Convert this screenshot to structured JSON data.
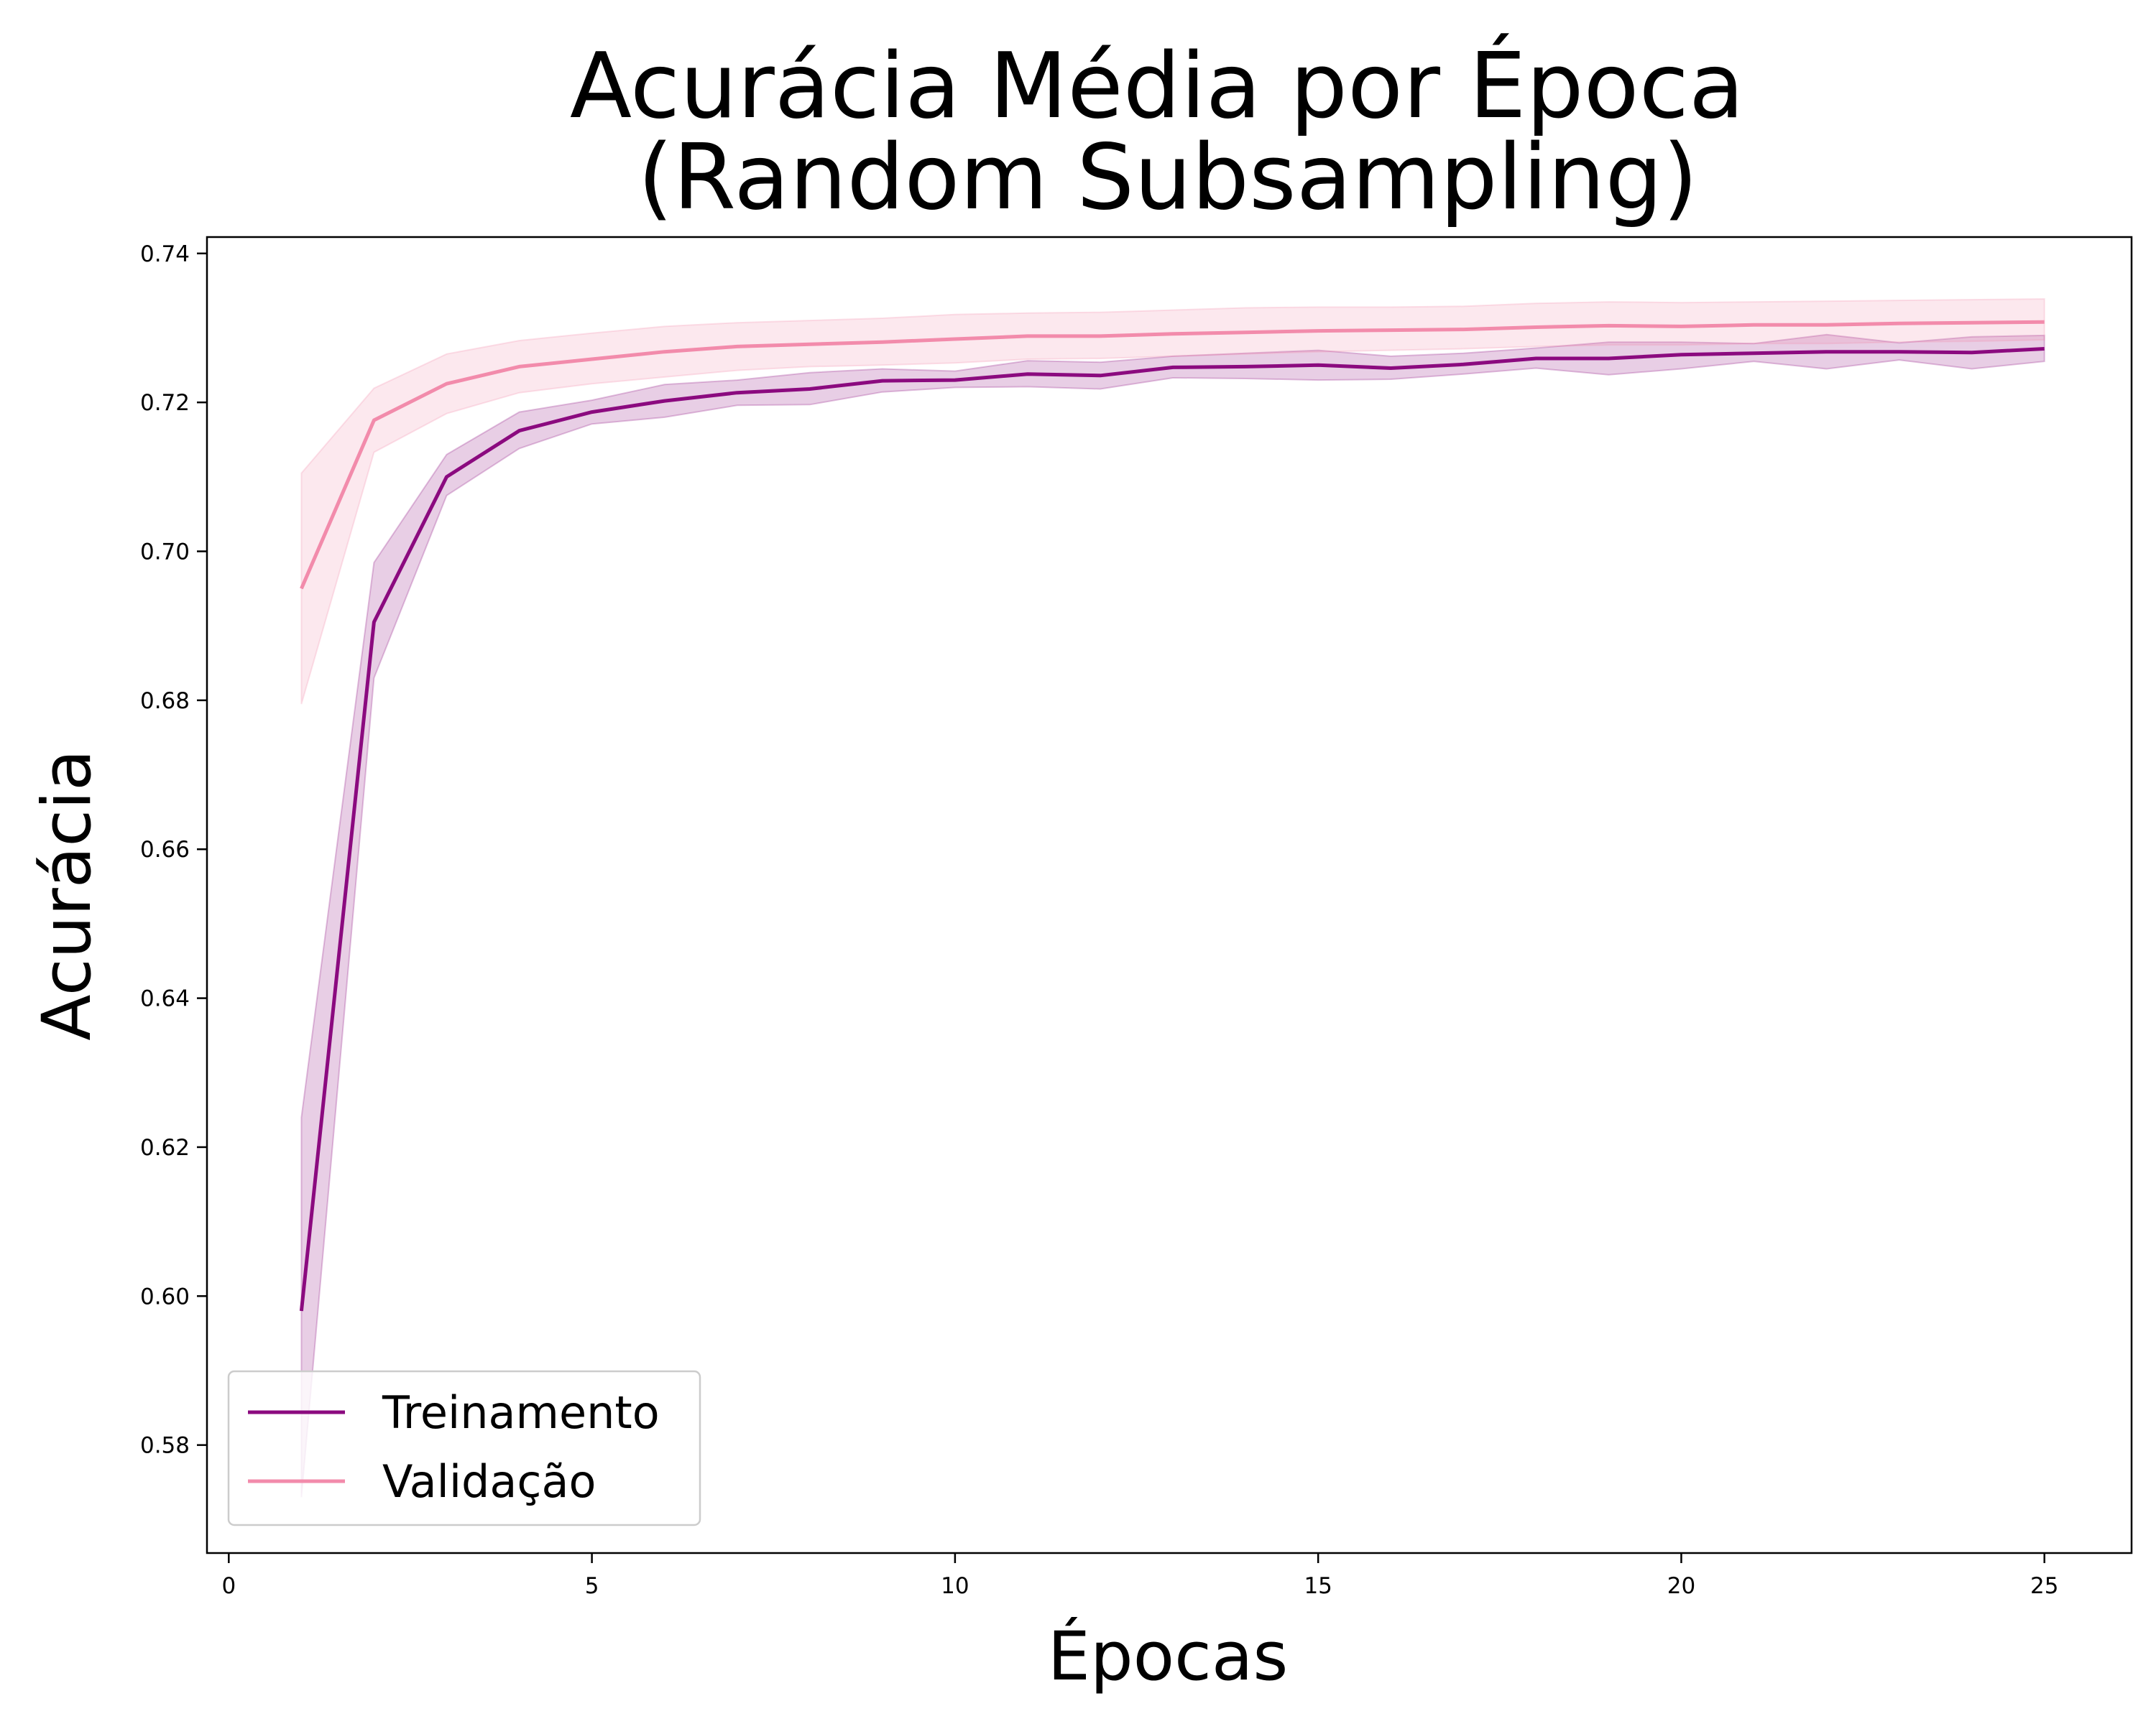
{
  "chart_data": {
    "type": "line",
    "title_line1": "Acurácia Média por Época",
    "title_line2": "(Random Subsampling)",
    "xlabel": "Épocas",
    "ylabel": "Acurácia",
    "xlim": [
      -0.3,
      26.2
    ],
    "ylim": [
      0.5655,
      0.7422
    ],
    "xticks": [
      0,
      5,
      10,
      15,
      20,
      25
    ],
    "xtick_labels": [
      "0",
      "5",
      "10",
      "15",
      "20",
      "25"
    ],
    "yticks": [
      0.58,
      0.6,
      0.62,
      0.64,
      0.66,
      0.68,
      0.7,
      0.72,
      0.74
    ],
    "ytick_labels": [
      "0.58",
      "0.60",
      "0.62",
      "0.64",
      "0.66",
      "0.68",
      "0.70",
      "0.72",
      "0.74"
    ],
    "grid": false,
    "legend_position": "lower-left",
    "x": [
      1,
      2,
      3,
      4,
      5,
      6,
      7,
      8,
      9,
      10,
      11,
      12,
      13,
      14,
      15,
      16,
      17,
      18,
      19,
      20,
      21,
      22,
      23,
      24,
      25
    ],
    "series": [
      {
        "name": "Treinamento",
        "color": "#8b0a7f",
        "values": [
          0.598,
          0.6905,
          0.71,
          0.7162,
          0.7187,
          0.7202,
          0.7213,
          0.7218,
          0.7229,
          0.723,
          0.7238,
          0.7236,
          0.7247,
          0.7248,
          0.725,
          0.7246,
          0.7251,
          0.7259,
          0.7259,
          0.7264,
          0.7266,
          0.7268,
          0.7268,
          0.7267,
          0.7272
        ],
        "lower": [
          0.573,
          0.683,
          0.7075,
          0.7138,
          0.7171,
          0.718,
          0.7196,
          0.7197,
          0.7214,
          0.722,
          0.7221,
          0.7218,
          0.7233,
          0.7232,
          0.723,
          0.7231,
          0.7238,
          0.7246,
          0.7237,
          0.7245,
          0.7255,
          0.7245,
          0.7257,
          0.7245,
          0.7255
        ],
        "upper": [
          0.624,
          0.6985,
          0.713,
          0.7187,
          0.7203,
          0.7224,
          0.723,
          0.724,
          0.7245,
          0.7242,
          0.7256,
          0.7254,
          0.7262,
          0.7266,
          0.727,
          0.7262,
          0.7266,
          0.7273,
          0.7281,
          0.7281,
          0.7279,
          0.7291,
          0.728,
          0.7288,
          0.729
        ]
      },
      {
        "name": "Validação",
        "color": "#f28bab",
        "values": [
          0.695,
          0.7176,
          0.7225,
          0.7248,
          0.7258,
          0.7268,
          0.7275,
          0.7278,
          0.7281,
          0.7285,
          0.7289,
          0.7289,
          0.7292,
          0.7294,
          0.7296,
          0.7297,
          0.7298,
          0.7301,
          0.7303,
          0.7302,
          0.7304,
          0.7304,
          0.7306,
          0.7307,
          0.7308
        ],
        "lower": [
          0.6795,
          0.7133,
          0.7185,
          0.7213,
          0.7225,
          0.7234,
          0.7243,
          0.7248,
          0.725,
          0.7253,
          0.7258,
          0.7259,
          0.7262,
          0.7265,
          0.7268,
          0.727,
          0.7272,
          0.7275,
          0.7277,
          0.7277,
          0.7279,
          0.7279,
          0.7281,
          0.7282,
          0.7284
        ],
        "upper": [
          0.7105,
          0.7219,
          0.7265,
          0.7283,
          0.7293,
          0.7302,
          0.7307,
          0.731,
          0.7313,
          0.7318,
          0.732,
          0.7321,
          0.7324,
          0.7327,
          0.7328,
          0.7328,
          0.7329,
          0.7333,
          0.7335,
          0.7334,
          0.7335,
          0.7336,
          0.7337,
          0.7338,
          0.7339
        ]
      }
    ]
  }
}
